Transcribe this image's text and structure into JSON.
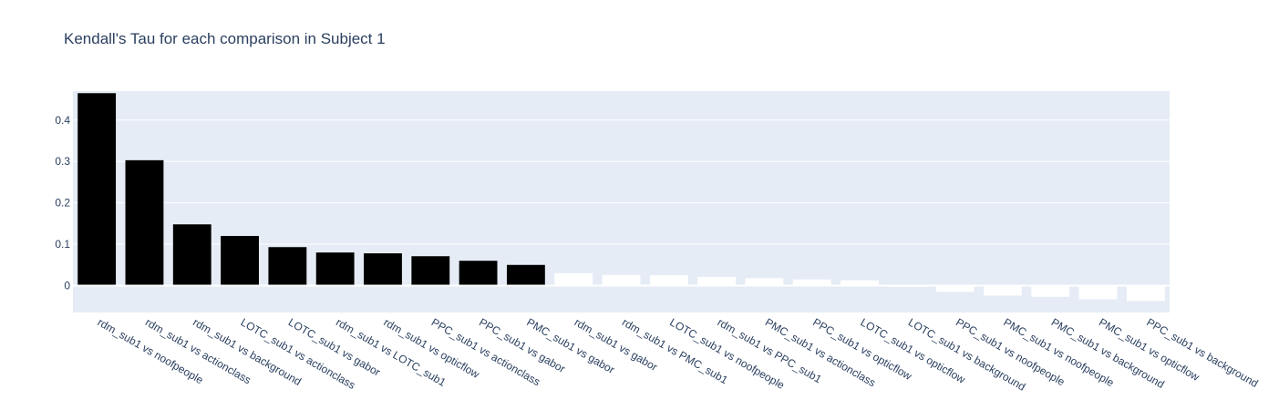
{
  "chart_data": {
    "type": "bar",
    "title": "Kendall's Tau for each comparison in Subject 1",
    "xlabel": "",
    "ylabel": "",
    "ylim": [
      -0.065,
      0.47
    ],
    "yticks": [
      0,
      0.1,
      0.2,
      0.3,
      0.4
    ],
    "ytick_labels": [
      "0",
      "0.1",
      "0.2",
      "0.3",
      "0.4"
    ],
    "grid": true,
    "background_color": "#e5ecf6",
    "colors": {
      "significant": "#000000",
      "non_significant": "#ffffff"
    },
    "categories": [
      "rdm_sub1 vs noofpeople",
      "rdm_sub1 vs actionclass",
      "rdm_sub1 vs background",
      "LOTC_sub1 vs actionclass",
      "LOTC_sub1 vs gabor",
      "rdm_sub1 vs LOTC_sub1",
      "rdm_sub1 vs opticflow",
      "PPC_sub1 vs actionclass",
      "PPC_sub1 vs gabor",
      "PMC_sub1 vs gabor",
      "rdm_sub1 vs gabor",
      "rdm_sub1 vs PMC_sub1",
      "LOTC_sub1 vs noofpeople",
      "rdm_sub1 vs PPC_sub1",
      "PMC_sub1 vs actionclass",
      "PPC_sub1 vs opticflow",
      "LOTC_sub1 vs opticflow",
      "LOTC_sub1 vs background",
      "PPC_sub1 vs noofpeople",
      "PMC_sub1 vs noofpeople",
      "PMC_sub1 vs background",
      "PMC_sub1 vs opticflow",
      "PPC_sub1 vs background"
    ],
    "values": [
      0.465,
      0.303,
      0.148,
      0.12,
      0.093,
      0.08,
      0.078,
      0.071,
      0.06,
      0.05,
      0.03,
      0.026,
      0.025,
      0.021,
      0.018,
      0.015,
      0.013,
      -0.003,
      -0.015,
      -0.024,
      -0.027,
      -0.033,
      -0.037
    ],
    "bar_colors": [
      "#000000",
      "#000000",
      "#000000",
      "#000000",
      "#000000",
      "#000000",
      "#000000",
      "#000000",
      "#000000",
      "#000000",
      "#ffffff",
      "#ffffff",
      "#ffffff",
      "#ffffff",
      "#ffffff",
      "#ffffff",
      "#ffffff",
      "#ffffff",
      "#ffffff",
      "#ffffff",
      "#ffffff",
      "#ffffff",
      "#ffffff"
    ]
  }
}
